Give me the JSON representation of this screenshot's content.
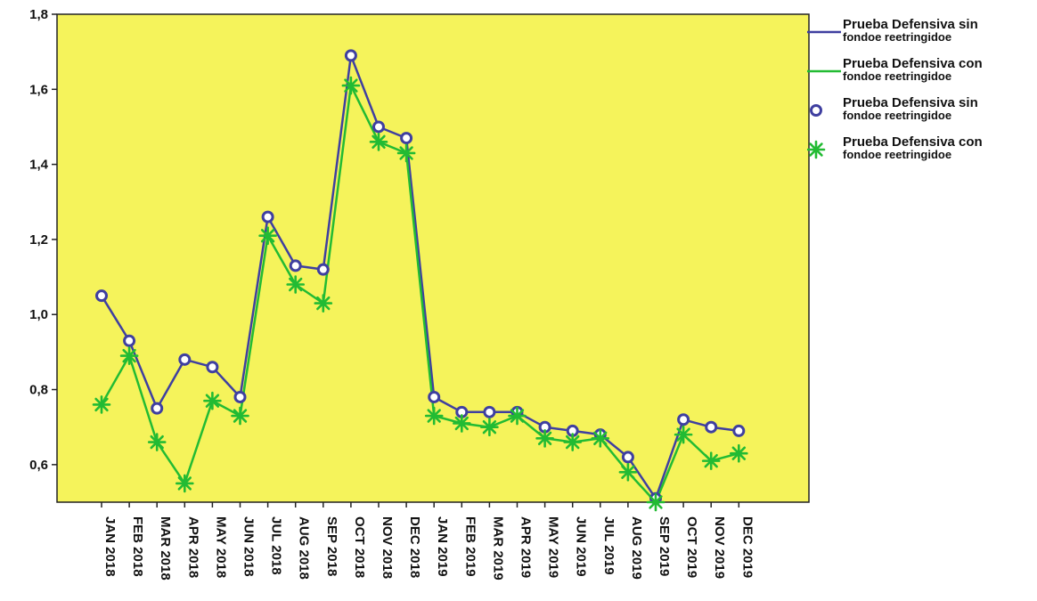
{
  "chart_data": {
    "type": "line",
    "title": "",
    "xlabel": "",
    "ylabel": "",
    "ylim": [
      0.5,
      1.8
    ],
    "yticks": [
      "0,6",
      "0,8",
      "1,0",
      "1,2",
      "1,4",
      "1,6",
      "1,8"
    ],
    "ytick_values": [
      0.6,
      0.8,
      1.0,
      1.2,
      1.4,
      1.6,
      1.8
    ],
    "categories": [
      "JAN 2018",
      "FEB 2018",
      "MAR 2018",
      "APR 2018",
      "MAY 2018",
      "JUN 2018",
      "JUL 2018",
      "AUG 2018",
      "SEP 2018",
      "OCT 2018",
      "NOV 2018",
      "DEC 2018",
      "JAN 2019",
      "FEB 2019",
      "MAR 2019",
      "APR 2019",
      "MAY 2019",
      "JUN 2019",
      "JUL 2019",
      "AUG 2019",
      "SEP 2019",
      "OCT 2019",
      "NOV 2019",
      "DEC 2019"
    ],
    "series": [
      {
        "name": "Prueba Defensiva sin fondoe reetringidoe",
        "color": "#3f3fa0",
        "marker": "circle",
        "values": [
          1.05,
          0.93,
          0.75,
          0.88,
          0.86,
          0.78,
          1.26,
          1.13,
          1.12,
          1.69,
          1.5,
          1.47,
          0.78,
          0.74,
          0.74,
          0.74,
          0.7,
          0.69,
          0.68,
          0.62,
          0.51,
          0.72,
          0.7,
          0.69
        ]
      },
      {
        "name": "Prueba Defensiva con fondoe reetringidoe",
        "color": "#22bb33",
        "marker": "star",
        "values": [
          0.76,
          0.89,
          0.66,
          0.55,
          0.77,
          0.73,
          1.21,
          1.08,
          1.03,
          1.61,
          1.46,
          1.43,
          0.73,
          0.71,
          0.7,
          0.73,
          0.67,
          0.66,
          0.67,
          0.58,
          0.5,
          0.68,
          0.61,
          0.63
        ]
      }
    ],
    "legend_position": "right",
    "grid": false,
    "plot_background": "#f5f35b"
  },
  "legend": [
    {
      "line1": "Prueba Defensiva sin",
      "line2": "fondoe reetringidoe",
      "key": "line",
      "color": "#3f3fa0"
    },
    {
      "line1": "Prueba Defensiva con",
      "line2": "fondoe reetringidoe",
      "key": "line",
      "color": "#22bb33"
    },
    {
      "line1": "Prueba Defensiva sin",
      "line2": "fondoe reetringidoe",
      "key": "circle",
      "color": "#3f3fa0"
    },
    {
      "line1": "Prueba Defensiva con",
      "line2": "fondoe reetringidoe",
      "key": "star",
      "color": "#22bb33"
    }
  ]
}
